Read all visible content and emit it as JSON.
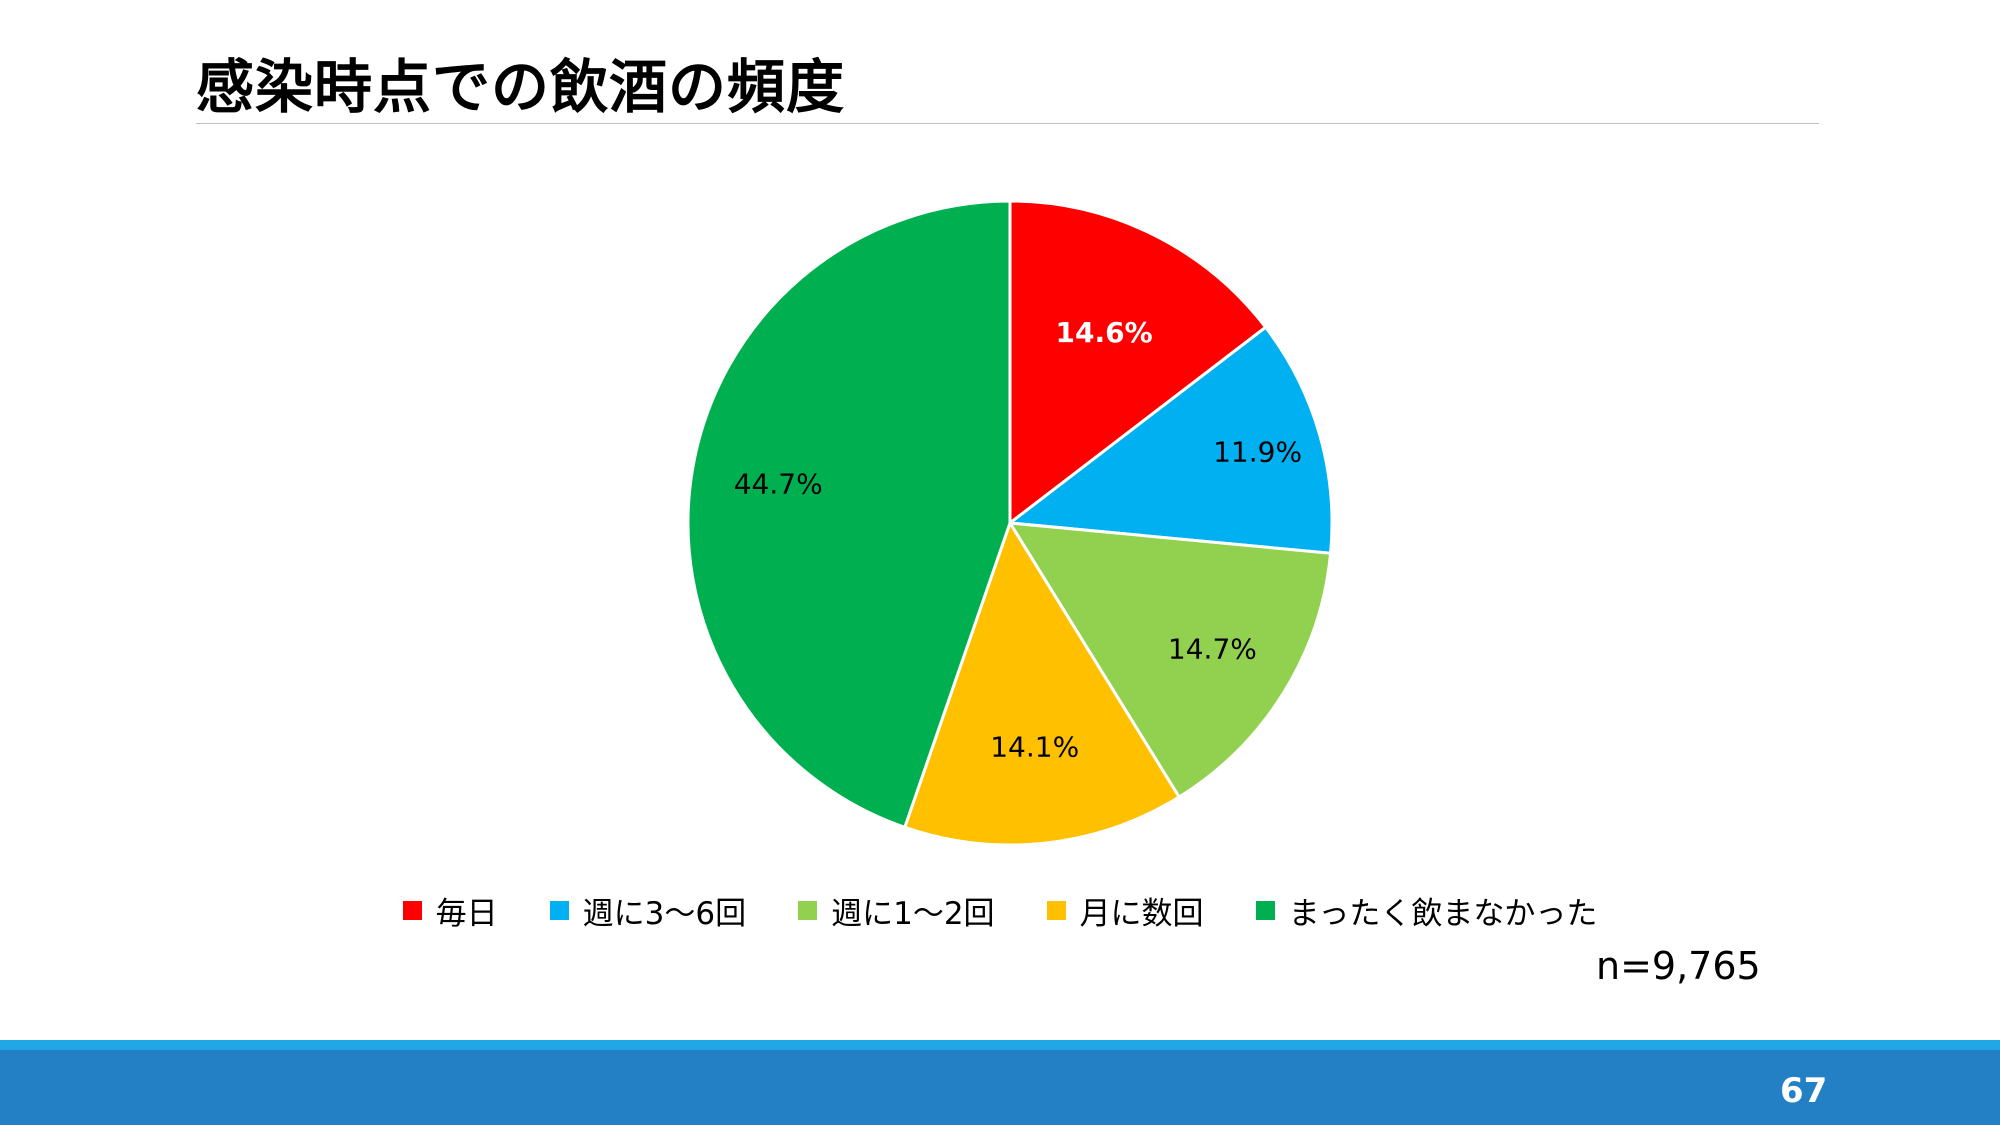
{
  "slide": {
    "title": "感染時点での飲酒の頻度",
    "sample_size": "n=9,765",
    "page_number": "67"
  },
  "chart_data": {
    "type": "pie",
    "title": "",
    "categories": [
      "毎日",
      "週に3～6回",
      "週に1～2回",
      "月に数回",
      "まったく飲まなかった"
    ],
    "values": [
      14.6,
      11.9,
      14.7,
      14.1,
      44.7
    ],
    "data_labels": [
      "14.6%",
      "11.9%",
      "14.7%",
      "14.1%",
      "44.7%"
    ],
    "colors": [
      "#ff0000",
      "#00b0f0",
      "#92d050",
      "#ffc000",
      "#00b050"
    ],
    "label_colors": [
      "#ffffff",
      "#000000",
      "#000000",
      "#000000",
      "#000000"
    ],
    "label_bold": [
      true,
      false,
      false,
      false,
      false
    ],
    "start_angle_deg": 0,
    "direction": "clockwise",
    "legend_position": "bottom"
  }
}
